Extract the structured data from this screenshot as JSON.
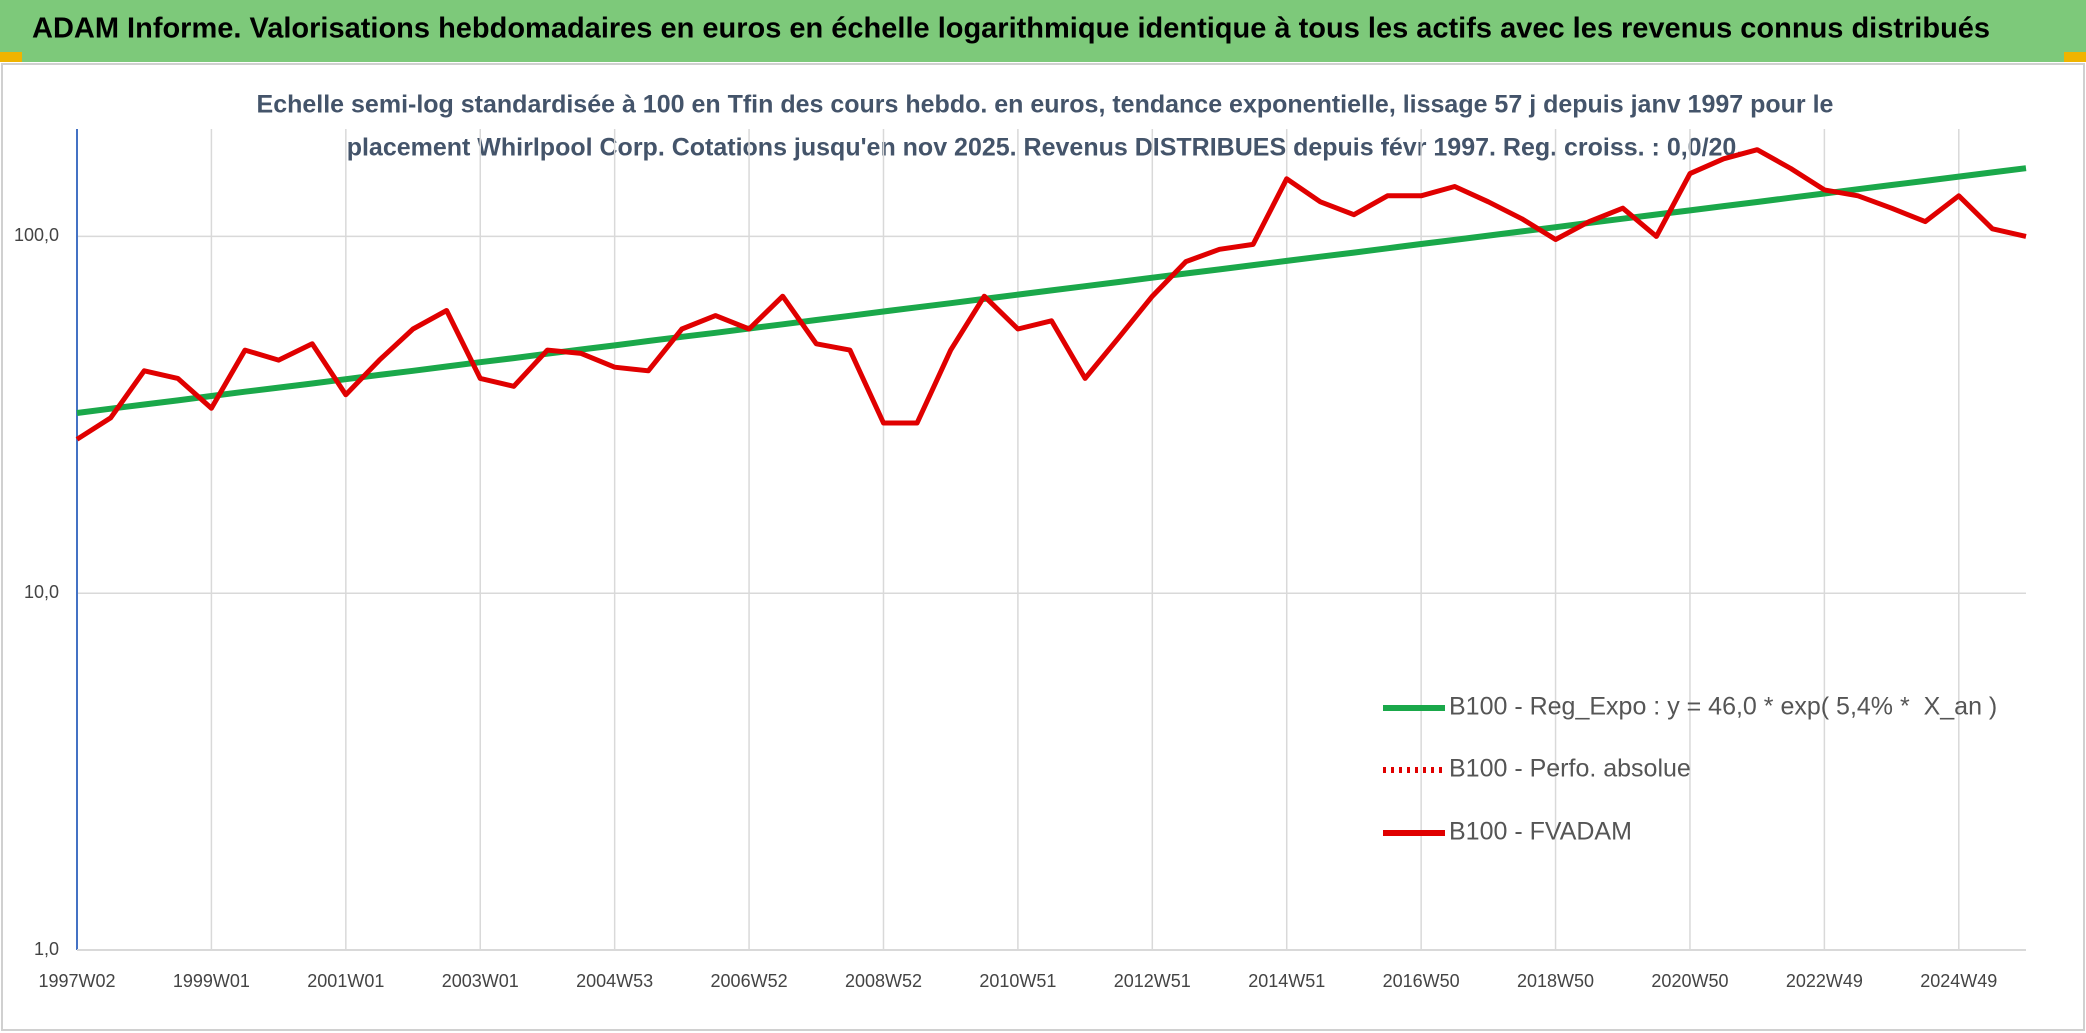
{
  "chart_data": {
    "type": "line",
    "title": "ADAM Informe. Valorisations hebdomadaires en euros en échelle logarithmique identique à tous les actifs avec les revenus connus distribués",
    "subtitle": [
      "Echelle semi-log standardisée à 100 en Tfin des cours hebdo. en euros, tendance exponentielle, lissage 57 j depuis janv 1997 pour le",
      "placement Whirlpool Corp. Cotations jusqu'en nov 2025. Revenus DISTRIBUES depuis févr 1997. Reg. croiss. : 0,0/20."
    ],
    "log_scale": true,
    "grid": true,
    "legend": "lower right",
    "ylim": [
      1,
      200
    ],
    "yticks": [
      {
        "value": 1,
        "label": "1,0"
      },
      {
        "value": 10,
        "label": "10,0"
      },
      {
        "value": 100,
        "label": "100,0"
      }
    ],
    "categories": [
      "1997W02",
      null,
      null,
      null,
      "1999W01",
      null,
      null,
      null,
      "2001W01",
      null,
      null,
      null,
      "2003W01",
      null,
      null,
      null,
      "2004W53",
      null,
      null,
      null,
      "2006W52",
      null,
      null,
      null,
      "2008W52",
      null,
      null,
      null,
      "2010W51",
      null,
      null,
      null,
      "2012W51",
      null,
      null,
      null,
      "2014W51",
      null,
      null,
      null,
      "2016W50",
      null,
      null,
      null,
      "2018W50",
      null,
      null,
      null,
      "2020W50",
      null,
      null,
      null,
      "2022W49",
      null,
      null,
      null,
      "2024W49",
      null,
      null
    ],
    "series": [
      {
        "name": "B100 - Reg_Expo : y = 46,0 * exp( 5,4% *  X_an )",
        "color": "#1aa84a",
        "style": "solid",
        "values": [
          32.0,
          32.9,
          33.8,
          34.7,
          35.7,
          36.7,
          37.7,
          38.7,
          39.8,
          40.9,
          42.0,
          43.2,
          44.4,
          45.6,
          46.9,
          48.2,
          49.5,
          50.9,
          52.3,
          53.7,
          55.2,
          56.7,
          58.3,
          59.9,
          61.6,
          63.3,
          65.0,
          66.8,
          68.7,
          70.6,
          72.5,
          74.5,
          76.6,
          78.7,
          80.8,
          83.1,
          85.4,
          87.7,
          90.1,
          92.6,
          95.2,
          97.8,
          100.5,
          103.3,
          106.1,
          109.1,
          112.1,
          115.2,
          118.3,
          121.6,
          124.9,
          128.4,
          131.9,
          135.6,
          139.3,
          143.1,
          147.1,
          151.1,
          155.3
        ]
      },
      {
        "name": "B100 - Perfo. absolue",
        "color": "#e00000",
        "style": "dotted",
        "values": [
          null,
          null,
          null,
          null,
          null,
          null,
          null,
          null,
          null,
          null,
          null,
          null,
          null,
          null,
          null,
          null,
          null,
          null,
          null,
          null,
          null,
          null,
          null,
          null,
          null,
          null,
          null,
          null,
          null,
          null,
          null,
          null,
          null,
          null,
          null,
          null,
          null,
          null,
          null,
          null,
          null,
          null,
          null,
          null,
          null,
          null,
          null,
          null,
          null,
          null,
          null,
          null,
          null,
          null,
          null,
          null,
          null,
          null,
          null
        ]
      },
      {
        "name": "B100 - FVADAM",
        "color": "#e00000",
        "style": "solid",
        "values": [
          27,
          31,
          42,
          40,
          33,
          48,
          45,
          50,
          36,
          45,
          55,
          62,
          40,
          38,
          48,
          47,
          43,
          42,
          55,
          60,
          55,
          68,
          50,
          48,
          30,
          30,
          48,
          68,
          55,
          58,
          40,
          52,
          68,
          85,
          92,
          95,
          145,
          125,
          115,
          130,
          130,
          138,
          125,
          112,
          98,
          110,
          120,
          100,
          150,
          165,
          175,
          155,
          135,
          130,
          120,
          110,
          130,
          105,
          100
        ]
      }
    ]
  }
}
